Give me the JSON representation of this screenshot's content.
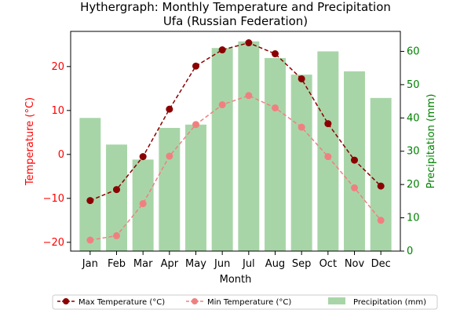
{
  "chart_data": {
    "type": "bar+line",
    "title": "Hythergraph: Monthly Temperature and Precipitation",
    "subtitle": "Ufa (Russian Federation)",
    "xlabel": "Month",
    "ylabel_left": "Temperature (°C)",
    "ylabel_right": "Precipitation (mm)",
    "categories": [
      "Jan",
      "Feb",
      "Mar",
      "Apr",
      "May",
      "Jun",
      "Jul",
      "Aug",
      "Sep",
      "Oct",
      "Nov",
      "Dec"
    ],
    "ylim_left": [
      -22,
      28
    ],
    "ylim_right": [
      0,
      66
    ],
    "yticks_left": [
      -20,
      -10,
      0,
      10,
      20
    ],
    "yticks_right": [
      0,
      10,
      20,
      30,
      40,
      50,
      60
    ],
    "series": [
      {
        "name": "Max Temperature (°C)",
        "axis": "left",
        "kind": "line",
        "style": "dashed",
        "color": "#8b0000",
        "values": [
          -10.5,
          -8,
          -0.5,
          10.3,
          20.1,
          23.8,
          25.4,
          22.9,
          17.2,
          7,
          -1.3,
          -7.2
        ]
      },
      {
        "name": "Min Temperature (°C)",
        "axis": "left",
        "kind": "line",
        "style": "dashed",
        "color": "#f08080",
        "values": [
          -19.5,
          -18.5,
          -11.2,
          -0.4,
          6.8,
          11.3,
          13.4,
          10.6,
          6.2,
          -0.5,
          -7.6,
          -15
        ]
      },
      {
        "name": "Precipitation (mm)",
        "axis": "right",
        "kind": "bar",
        "color": "#a8d5a8",
        "values": [
          40,
          32,
          27.5,
          37,
          38,
          61,
          63,
          58,
          53,
          60,
          54,
          46
        ]
      }
    ],
    "colors": {
      "left_axis": "#ff0000",
      "right_axis": "#008000"
    },
    "grid": false,
    "legend_position": "bottom"
  }
}
